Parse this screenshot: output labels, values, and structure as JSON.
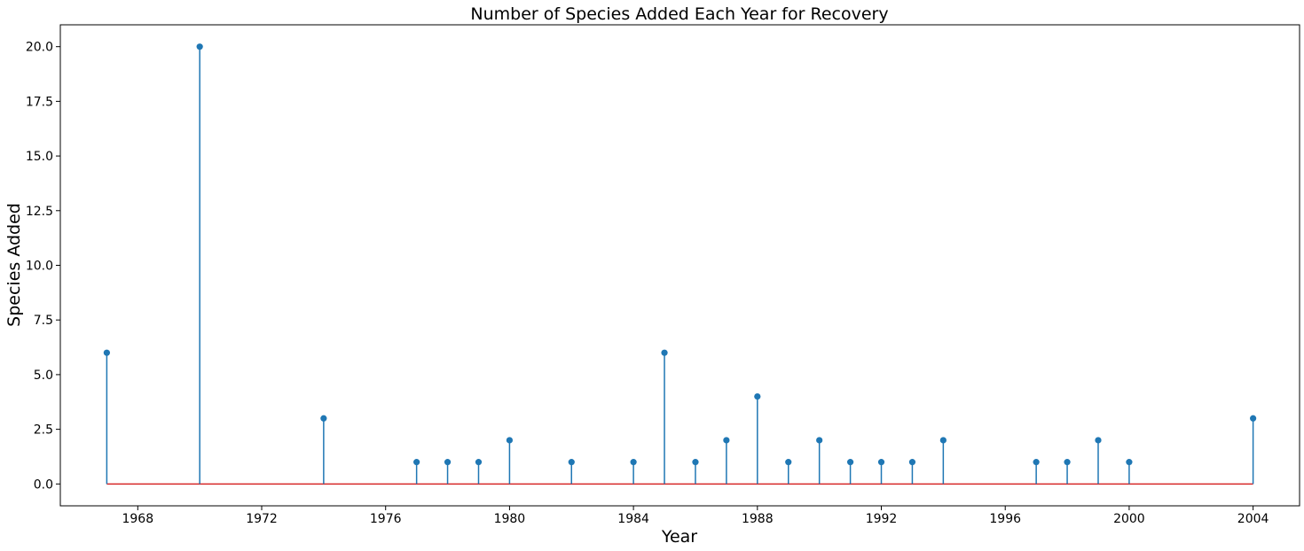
{
  "chart_data": {
    "type": "stem",
    "title": "Number of Species Added Each Year for Recovery",
    "xlabel": "Year",
    "ylabel": "Species Added",
    "xlim": [
      1965.5,
      2005.5
    ],
    "ylim": [
      -1,
      21
    ],
    "xticks": [
      1968,
      1972,
      1976,
      1980,
      1984,
      1988,
      1992,
      1996,
      2000,
      2004
    ],
    "yticks": [
      0.0,
      2.5,
      5.0,
      7.5,
      10.0,
      12.5,
      15.0,
      17.5,
      20.0
    ],
    "ytick_labels": [
      "0.0",
      "2.5",
      "5.0",
      "7.5",
      "10.0",
      "12.5",
      "15.0",
      "17.5",
      "20.0"
    ],
    "baseline": 0,
    "grid": false,
    "colors": {
      "stem": "#1f77b4",
      "baseline": "#d62728"
    },
    "points": [
      {
        "x": 1967,
        "y": 6
      },
      {
        "x": 1970,
        "y": 20
      },
      {
        "x": 1974,
        "y": 3
      },
      {
        "x": 1977,
        "y": 1
      },
      {
        "x": 1978,
        "y": 1
      },
      {
        "x": 1979,
        "y": 1
      },
      {
        "x": 1980,
        "y": 2
      },
      {
        "x": 1982,
        "y": 1
      },
      {
        "x": 1984,
        "y": 1
      },
      {
        "x": 1985,
        "y": 6
      },
      {
        "x": 1986,
        "y": 1
      },
      {
        "x": 1987,
        "y": 2
      },
      {
        "x": 1988,
        "y": 4
      },
      {
        "x": 1989,
        "y": 1
      },
      {
        "x": 1990,
        "y": 2
      },
      {
        "x": 1991,
        "y": 1
      },
      {
        "x": 1992,
        "y": 1
      },
      {
        "x": 1993,
        "y": 1
      },
      {
        "x": 1994,
        "y": 2
      },
      {
        "x": 1997,
        "y": 1
      },
      {
        "x": 1998,
        "y": 1
      },
      {
        "x": 1999,
        "y": 2
      },
      {
        "x": 2000,
        "y": 1
      },
      {
        "x": 2004,
        "y": 3
      }
    ]
  }
}
